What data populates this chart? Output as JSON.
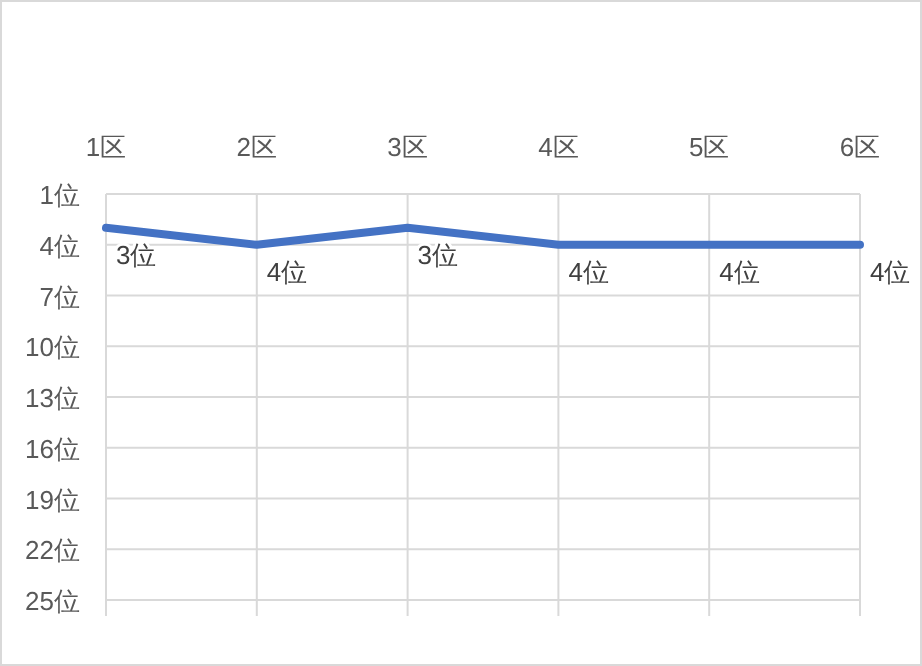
{
  "chart_data": {
    "type": "line",
    "categories": [
      "1区",
      "2区",
      "3区",
      "4区",
      "5区",
      "6区"
    ],
    "series": [
      {
        "color": "#4472c4",
        "values": [
          3,
          4,
          3,
          4,
          4,
          4
        ],
        "value_labels": [
          "3位",
          "4位",
          "3位",
          "4位",
          "4位",
          "4位"
        ]
      }
    ],
    "ylim": [
      25,
      1
    ],
    "yticks": [
      {
        "value": 1,
        "label": "1位"
      },
      {
        "value": 4,
        "label": "4位"
      },
      {
        "value": 7,
        "label": "7位"
      },
      {
        "value": 10,
        "label": "10位"
      },
      {
        "value": 13,
        "label": "13位"
      },
      {
        "value": 16,
        "label": "16位"
      },
      {
        "value": 19,
        "label": "19位"
      },
      {
        "value": 22,
        "label": "22位"
      },
      {
        "value": 25,
        "label": "25位"
      }
    ],
    "grid": true,
    "marker": "none",
    "line_style": "solid"
  }
}
